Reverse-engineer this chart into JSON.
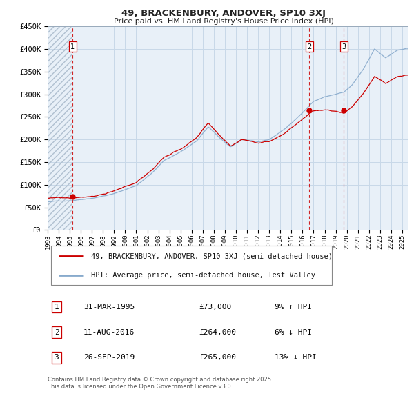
{
  "title_line1": "49, BRACKENBURY, ANDOVER, SP10 3XJ",
  "title_line2": "Price paid vs. HM Land Registry's House Price Index (HPI)",
  "legend_property": "49, BRACKENBURY, ANDOVER, SP10 3XJ (semi-detached house)",
  "legend_hpi": "HPI: Average price, semi-detached house, Test Valley",
  "transactions": [
    {
      "num": 1,
      "date": "31-MAR-1995",
      "price": 73000,
      "hpi_rel": "9% ↑ HPI",
      "date_x": 1995.25
    },
    {
      "num": 2,
      "date": "11-AUG-2016",
      "price": 264000,
      "hpi_rel": "6% ↓ HPI",
      "date_x": 2016.61
    },
    {
      "num": 3,
      "date": "26-SEP-2019",
      "price": 265000,
      "hpi_rel": "13% ↓ HPI",
      "date_x": 2019.74
    }
  ],
  "yticks": [
    0,
    50000,
    100000,
    150000,
    200000,
    250000,
    300000,
    350000,
    400000,
    450000
  ],
  "ytick_labels": [
    "£0",
    "£50K",
    "£100K",
    "£150K",
    "£200K",
    "£250K",
    "£300K",
    "£350K",
    "£400K",
    "£450K"
  ],
  "xmin": 1993.0,
  "xmax": 2025.5,
  "ymin": 0,
  "ymax": 450000,
  "color_property": "#cc0000",
  "color_hpi": "#88aacc",
  "color_vline": "#cc0000",
  "color_dot": "#cc0000",
  "color_grid": "#c8d8e8",
  "color_plot_bg": "#e8f0f8",
  "footnote": "Contains HM Land Registry data © Crown copyright and database right 2025.\nThis data is licensed under the Open Government Licence v3.0.",
  "xtick_years": [
    1993,
    1994,
    1995,
    1996,
    1997,
    1998,
    1999,
    2000,
    2001,
    2002,
    2003,
    2004,
    2005,
    2006,
    2007,
    2008,
    2009,
    2010,
    2011,
    2012,
    2013,
    2014,
    2015,
    2016,
    2017,
    2018,
    2019,
    2020,
    2021,
    2022,
    2023,
    2024,
    2025
  ],
  "hpi_key_points": [
    [
      1993.0,
      62000
    ],
    [
      1995.0,
      65000
    ],
    [
      1997.0,
      72000
    ],
    [
      1999.0,
      82000
    ],
    [
      2001.0,
      100000
    ],
    [
      2002.5,
      130000
    ],
    [
      2003.5,
      155000
    ],
    [
      2005.0,
      175000
    ],
    [
      2006.5,
      200000
    ],
    [
      2007.5,
      230000
    ],
    [
      2008.5,
      205000
    ],
    [
      2009.5,
      185000
    ],
    [
      2010.5,
      200000
    ],
    [
      2012.0,
      195000
    ],
    [
      2013.0,
      200000
    ],
    [
      2014.5,
      225000
    ],
    [
      2016.0,
      260000
    ],
    [
      2017.0,
      285000
    ],
    [
      2018.0,
      295000
    ],
    [
      2019.0,
      300000
    ],
    [
      2019.74,
      304000
    ],
    [
      2020.5,
      320000
    ],
    [
      2021.5,
      355000
    ],
    [
      2022.5,
      400000
    ],
    [
      2023.5,
      380000
    ],
    [
      2024.5,
      395000
    ],
    [
      2025.3,
      400000
    ]
  ],
  "prop_t1_price": 73000,
  "prop_t1_x": 1995.25,
  "prop_t2_price": 264000,
  "prop_t2_x": 2016.61,
  "prop_t3_price": 265000,
  "prop_t3_x": 2019.74
}
